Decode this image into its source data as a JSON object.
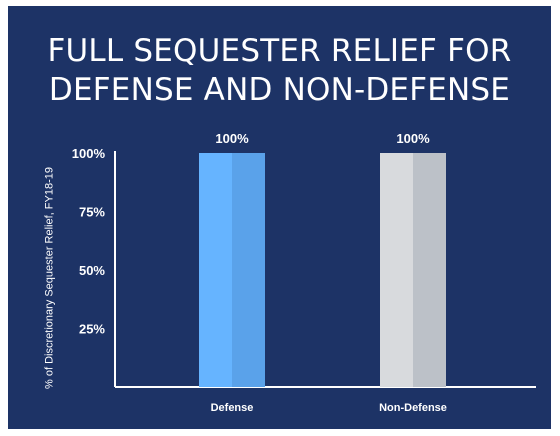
{
  "title": {
    "line1": "FULL SEQUESTER RELIEF FOR",
    "line2": "DEFENSE AND NON-DEFENSE"
  },
  "colors": {
    "background": "#1d3366",
    "defense_light": "#66b4ff",
    "defense_dark": "#5aa2ea",
    "nondefense_light": "#d8dadd",
    "nondefense_dark": "#bcc1c8",
    "axis": "#ffffff",
    "text": "#ffffff"
  },
  "chart_data": {
    "type": "bar",
    "categories": [
      "Defense",
      "Non-Defense"
    ],
    "values": [
      100,
      100
    ],
    "data_labels": [
      "100%",
      "100%"
    ],
    "ylabel": "% of Discretionary Sequester Relief, FY18-19",
    "yticks": [
      25,
      50,
      75,
      100
    ],
    "ytick_labels": [
      "25%",
      "50%",
      "75%",
      "100%"
    ],
    "ylim": [
      0,
      100
    ],
    "grid": false,
    "legend": "none"
  }
}
